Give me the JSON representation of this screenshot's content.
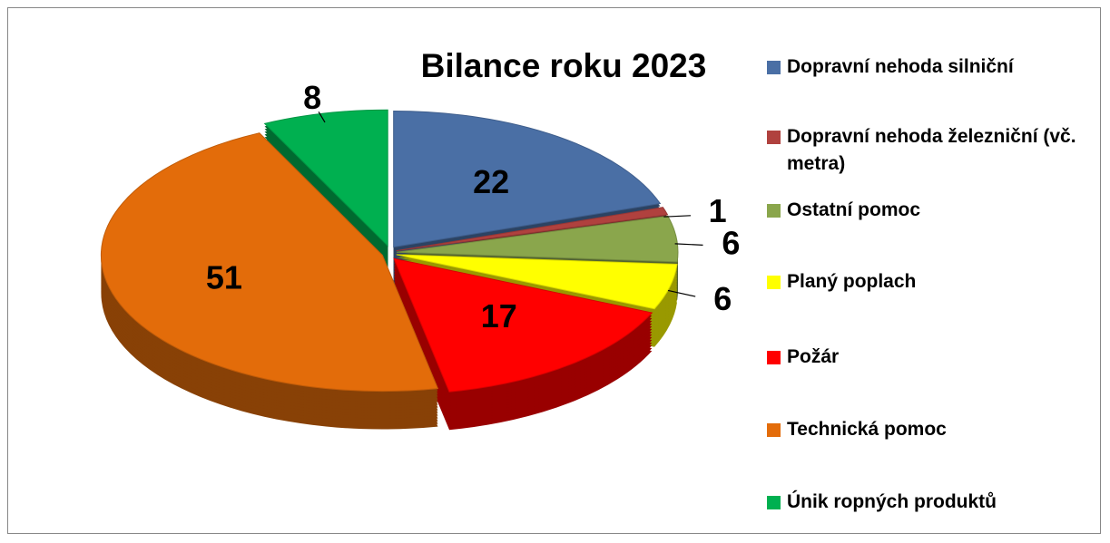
{
  "chart_data": {
    "type": "pie",
    "title": "Bilance roku 2023",
    "categories": [
      "Dopravní nehoda silniční",
      "Dopravní nehoda železniční (vč. metra)",
      "Ostatní pomoc",
      "Planý poplach",
      "Požár",
      "Technická pomoc",
      "Únik ropných produktů"
    ],
    "values": [
      22,
      1,
      6,
      6,
      17,
      51,
      8
    ],
    "colors": [
      "#4a6fa5",
      "#b0413e",
      "#8aa64c",
      "#ffff00",
      "#ff0000",
      "#e36c0a",
      "#00b050"
    ],
    "legend": "right"
  }
}
